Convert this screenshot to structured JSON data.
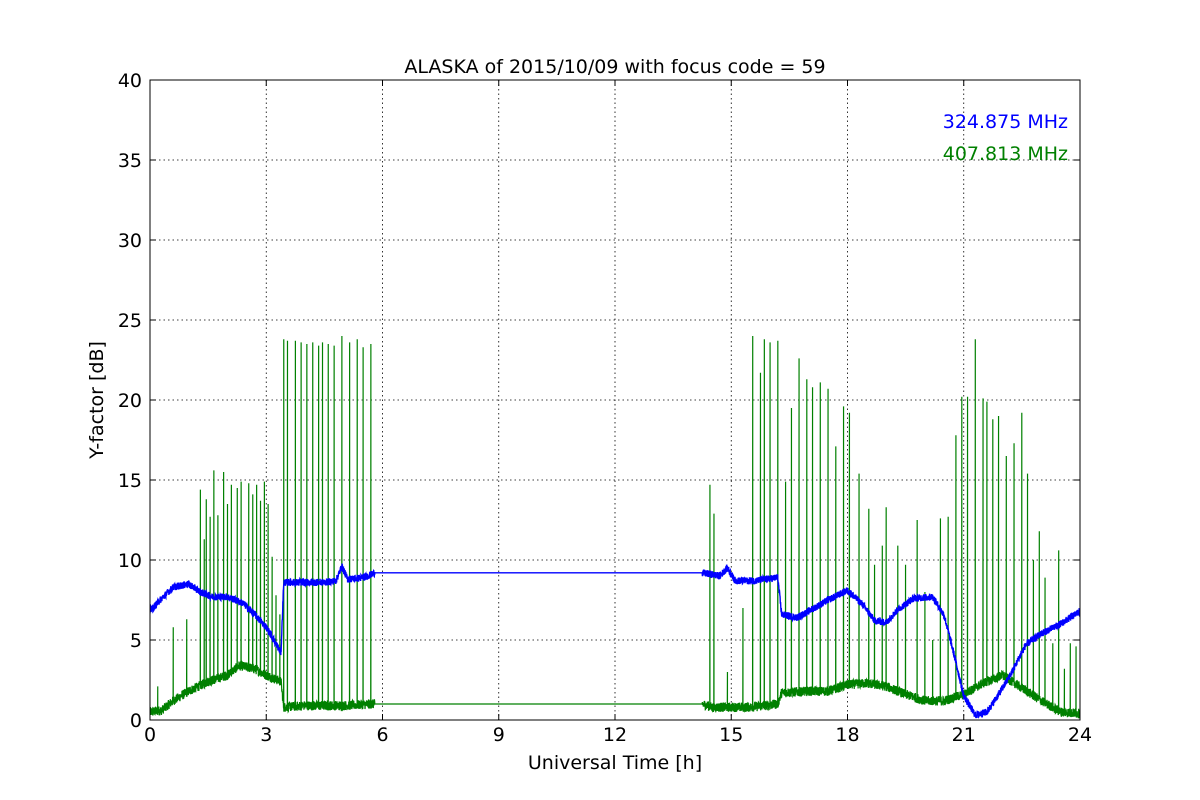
{
  "chart_data": {
    "type": "line",
    "title": "ALASKA of 2015/10/09 with focus code = 59",
    "xlabel": "Universal Time [h]",
    "ylabel": "Y-factor [dB]",
    "xlim": [
      0,
      24
    ],
    "ylim": [
      0,
      40
    ],
    "xticks": [
      0,
      3,
      6,
      9,
      12,
      15,
      18,
      21,
      24
    ],
    "xtick_labels": [
      "0",
      "3",
      "6",
      "9",
      "12",
      "15",
      "18",
      "21",
      "24"
    ],
    "yticks": [
      0,
      5,
      10,
      15,
      20,
      25,
      30,
      35,
      40
    ],
    "ytick_labels": [
      "0",
      "5",
      "10",
      "15",
      "20",
      "25",
      "30",
      "35",
      "40"
    ],
    "grid": true,
    "legend_position": "top-right",
    "series": [
      {
        "name": "324.875 MHz",
        "color": "#0000ff",
        "baseline": [
          [
            0,
            6.8
          ],
          [
            0.3,
            7.6
          ],
          [
            0.6,
            8.3
          ],
          [
            1.0,
            8.5
          ],
          [
            1.3,
            8.0
          ],
          [
            1.6,
            7.7
          ],
          [
            2.0,
            7.7
          ],
          [
            2.4,
            7.3
          ],
          [
            2.7,
            6.6
          ],
          [
            3.0,
            5.8
          ],
          [
            3.2,
            5.0
          ],
          [
            3.38,
            4.2
          ],
          [
            3.45,
            8.6
          ],
          [
            4.0,
            8.6
          ],
          [
            4.5,
            8.6
          ],
          [
            4.8,
            8.7
          ],
          [
            4.95,
            9.6
          ],
          [
            5.1,
            8.8
          ],
          [
            5.5,
            8.9
          ],
          [
            5.72,
            9.1
          ],
          [
            5.8,
            9.2
          ],
          [
            14.25,
            9.2
          ],
          [
            14.5,
            9.1
          ],
          [
            14.7,
            9.0
          ],
          [
            14.9,
            9.5
          ],
          [
            15.1,
            8.7
          ],
          [
            15.6,
            8.7
          ],
          [
            16.2,
            8.9
          ],
          [
            16.3,
            6.6
          ],
          [
            16.7,
            6.4
          ],
          [
            17.0,
            6.8
          ],
          [
            17.5,
            7.5
          ],
          [
            18.0,
            8.1
          ],
          [
            18.4,
            7.2
          ],
          [
            18.7,
            6.2
          ],
          [
            19.0,
            6.1
          ],
          [
            19.3,
            6.9
          ],
          [
            19.7,
            7.6
          ],
          [
            20.2,
            7.7
          ],
          [
            20.5,
            6.5
          ],
          [
            20.8,
            3.6
          ],
          [
            21.0,
            1.5
          ],
          [
            21.3,
            0.3
          ],
          [
            21.6,
            0.5
          ],
          [
            21.9,
            1.6
          ],
          [
            22.2,
            2.8
          ],
          [
            22.6,
            4.7
          ],
          [
            23.0,
            5.4
          ],
          [
            23.5,
            6.0
          ],
          [
            24.0,
            6.8
          ]
        ],
        "spikes": []
      },
      {
        "name": "407.813 MHz",
        "color": "#008000",
        "baseline": [
          [
            0,
            0.5
          ],
          [
            0.3,
            0.6
          ],
          [
            0.6,
            1.2
          ],
          [
            1.0,
            1.8
          ],
          [
            1.5,
            2.4
          ],
          [
            2.0,
            2.8
          ],
          [
            2.3,
            3.4
          ],
          [
            2.7,
            3.2
          ],
          [
            3.0,
            2.8
          ],
          [
            3.38,
            2.4
          ],
          [
            3.45,
            0.8
          ],
          [
            4.0,
            0.9
          ],
          [
            5.0,
            0.9
          ],
          [
            5.72,
            1.0
          ],
          [
            5.8,
            1.0
          ],
          [
            14.25,
            1.0
          ],
          [
            14.5,
            0.8
          ],
          [
            15.0,
            0.8
          ],
          [
            15.5,
            0.8
          ],
          [
            16.2,
            1.0
          ],
          [
            16.3,
            1.7
          ],
          [
            17.0,
            1.8
          ],
          [
            17.5,
            1.8
          ],
          [
            18.0,
            2.2
          ],
          [
            18.5,
            2.3
          ],
          [
            19.0,
            2.1
          ],
          [
            19.5,
            1.6
          ],
          [
            20.0,
            1.2
          ],
          [
            20.5,
            1.2
          ],
          [
            21.0,
            1.6
          ],
          [
            21.5,
            2.3
          ],
          [
            22.0,
            2.8
          ],
          [
            22.5,
            2.0
          ],
          [
            23.0,
            1.2
          ],
          [
            23.5,
            0.5
          ],
          [
            24.0,
            0.4
          ]
        ],
        "spikes": [
          [
            0.2,
            2.1
          ],
          [
            0.6,
            5.8
          ],
          [
            0.95,
            6.3
          ],
          [
            1.3,
            14.4
          ],
          [
            1.4,
            11.3
          ],
          [
            1.45,
            13.8
          ],
          [
            1.55,
            12.7
          ],
          [
            1.65,
            15.6
          ],
          [
            1.75,
            12.8
          ],
          [
            1.9,
            15.5
          ],
          [
            2.0,
            13.5
          ],
          [
            2.1,
            14.7
          ],
          [
            2.25,
            14.5
          ],
          [
            2.35,
            14.9
          ],
          [
            2.55,
            14.8
          ],
          [
            2.65,
            14.1
          ],
          [
            2.75,
            14.7
          ],
          [
            2.85,
            13.7
          ],
          [
            2.95,
            14.9
          ],
          [
            3.05,
            13.5
          ],
          [
            3.15,
            10.2
          ],
          [
            3.25,
            7.8
          ],
          [
            3.35,
            6.6
          ],
          [
            3.45,
            23.8
          ],
          [
            3.55,
            23.7
          ],
          [
            3.75,
            23.7
          ],
          [
            3.9,
            23.6
          ],
          [
            4.05,
            23.5
          ],
          [
            4.2,
            23.6
          ],
          [
            4.35,
            23.4
          ],
          [
            4.45,
            23.6
          ],
          [
            4.6,
            23.5
          ],
          [
            4.75,
            23.4
          ],
          [
            4.95,
            24.0
          ],
          [
            5.15,
            23.6
          ],
          [
            5.35,
            23.8
          ],
          [
            5.5,
            23.3
          ],
          [
            5.7,
            23.5
          ],
          [
            14.45,
            14.7
          ],
          [
            14.55,
            12.9
          ],
          [
            14.9,
            3.0
          ],
          [
            15.3,
            7.0
          ],
          [
            15.55,
            24.0
          ],
          [
            15.75,
            21.7
          ],
          [
            15.85,
            23.8
          ],
          [
            16.0,
            23.6
          ],
          [
            16.2,
            23.7
          ],
          [
            16.4,
            14.9
          ],
          [
            16.55,
            19.5
          ],
          [
            16.75,
            22.6
          ],
          [
            16.95,
            21.3
          ],
          [
            17.1,
            20.8
          ],
          [
            17.3,
            21.1
          ],
          [
            17.5,
            20.7
          ],
          [
            17.7,
            17.1
          ],
          [
            17.9,
            19.6
          ],
          [
            18.05,
            19.2
          ],
          [
            18.3,
            15.4
          ],
          [
            18.55,
            13.2
          ],
          [
            18.7,
            9.7
          ],
          [
            18.9,
            10.9
          ],
          [
            19.0,
            13.3
          ],
          [
            19.3,
            10.9
          ],
          [
            19.5,
            9.7
          ],
          [
            19.8,
            12.5
          ],
          [
            20.0,
            8.0
          ],
          [
            20.2,
            5.0
          ],
          [
            20.4,
            12.6
          ],
          [
            20.6,
            12.7
          ],
          [
            20.8,
            17.8
          ],
          [
            20.95,
            20.2
          ],
          [
            21.1,
            20.2
          ],
          [
            21.3,
            23.8
          ],
          [
            21.5,
            20.1
          ],
          [
            21.6,
            19.9
          ],
          [
            21.75,
            18.8
          ],
          [
            21.9,
            19.0
          ],
          [
            22.1,
            16.5
          ],
          [
            22.3,
            17.3
          ],
          [
            22.5,
            19.2
          ],
          [
            22.65,
            15.4
          ],
          [
            22.8,
            10.0
          ],
          [
            22.95,
            11.8
          ],
          [
            23.1,
            8.9
          ],
          [
            23.3,
            4.8
          ],
          [
            23.45,
            10.6
          ],
          [
            23.6,
            3.2
          ],
          [
            23.75,
            4.8
          ],
          [
            23.9,
            4.6
          ]
        ]
      }
    ]
  }
}
